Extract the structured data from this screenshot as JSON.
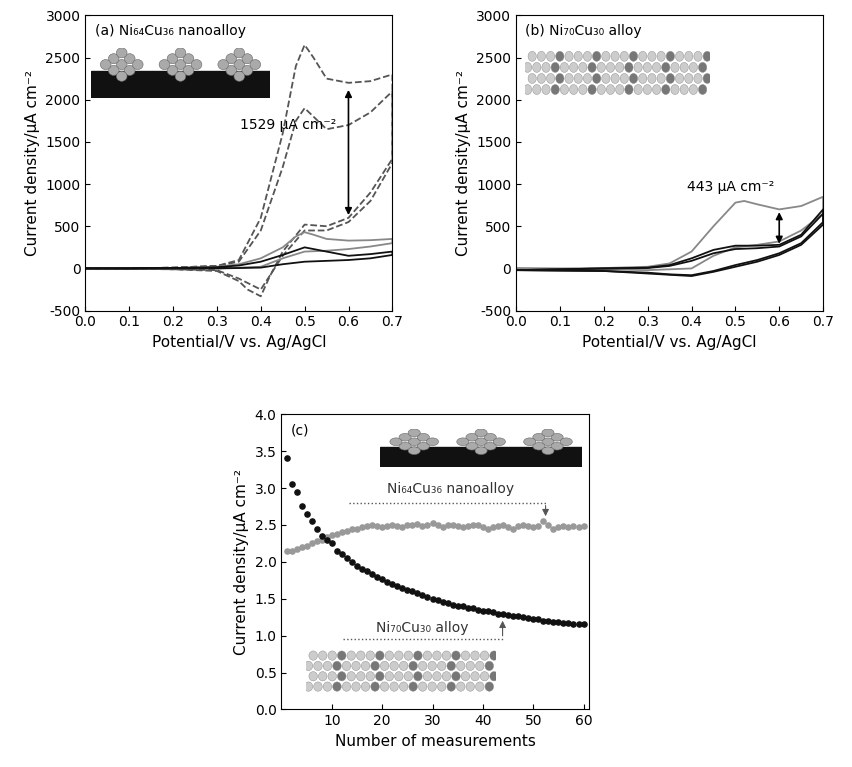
{
  "chart_data": [
    {
      "type": "line",
      "title": "(a) Ni₆₄Cu₃₆ nanoalloy",
      "x_label": "Potential/V vs. Ag/AgCl",
      "y_label": "Current density/μA cm⁻²",
      "xlim": [
        0.0,
        0.7
      ],
      "xticks": [
        0.0,
        0.1,
        0.2,
        0.3,
        0.4,
        0.5,
        0.6,
        0.7
      ],
      "ylim": [
        -500,
        3000
      ],
      "yticks": [
        -500,
        0,
        500,
        1000,
        1500,
        2000,
        2500,
        3000
      ],
      "annotations": [
        "1529 μA cm⁻²"
      ],
      "series": [
        {
          "color": "#555555",
          "line_style": "dashed",
          "x": [
            0.0,
            0.1,
            0.2,
            0.3,
            0.35,
            0.4,
            0.45,
            0.48,
            0.5,
            0.52,
            0.55,
            0.6,
            0.65,
            0.7,
            0.7,
            0.65,
            0.6,
            0.55,
            0.5,
            0.45,
            0.42,
            0.4,
            0.37,
            0.35,
            0.3,
            0.2,
            0.1,
            0.0
          ],
          "values": [
            0,
            0,
            10,
            30,
            100,
            600,
            1600,
            2400,
            2650,
            2500,
            2250,
            2200,
            2220,
            2300,
            1300,
            900,
            600,
            500,
            520,
            200,
            -100,
            -330,
            -250,
            -150,
            -30,
            -10,
            0,
            0
          ]
        },
        {
          "color": "#555555",
          "line_style": "dashed",
          "x": [
            0.0,
            0.1,
            0.2,
            0.3,
            0.35,
            0.4,
            0.45,
            0.48,
            0.5,
            0.52,
            0.55,
            0.6,
            0.65,
            0.7,
            0.7,
            0.65,
            0.6,
            0.55,
            0.5,
            0.45,
            0.4,
            0.35,
            0.3,
            0.2,
            0.0
          ],
          "values": [
            0,
            0,
            10,
            30,
            80,
            450,
            1200,
            1750,
            1900,
            1800,
            1650,
            1700,
            1850,
            2100,
            1250,
            800,
            550,
            450,
            450,
            150,
            -250,
            -120,
            -20,
            -10,
            0
          ]
        },
        {
          "color": "#888888",
          "line_style": "solid",
          "x": [
            0.0,
            0.1,
            0.2,
            0.3,
            0.35,
            0.4,
            0.45,
            0.48,
            0.5,
            0.52,
            0.55,
            0.6,
            0.65,
            0.7,
            0.7,
            0.65,
            0.6,
            0.55,
            0.5,
            0.45,
            0.4,
            0.3,
            0.2,
            0.0
          ],
          "values": [
            0,
            0,
            5,
            20,
            50,
            120,
            250,
            380,
            430,
            400,
            350,
            330,
            335,
            350,
            300,
            260,
            230,
            210,
            200,
            120,
            20,
            0,
            0,
            0
          ]
        },
        {
          "color": "#111111",
          "line_style": "solid",
          "x": [
            0.0,
            0.1,
            0.2,
            0.3,
            0.35,
            0.4,
            0.45,
            0.5,
            0.55,
            0.6,
            0.65,
            0.7,
            0.7,
            0.65,
            0.6,
            0.55,
            0.5,
            0.45,
            0.4,
            0.3,
            0.2,
            0.0
          ],
          "values": [
            0,
            0,
            5,
            15,
            35,
            80,
            160,
            250,
            200,
            150,
            170,
            200,
            160,
            120,
            100,
            90,
            80,
            50,
            10,
            0,
            0,
            0
          ]
        }
      ]
    },
    {
      "type": "line",
      "title": "(b) Ni₇₀Cu₃₀ alloy",
      "x_label": "Potential/V vs. Ag/AgCl",
      "y_label": "Current density/μA cm⁻²",
      "xlim": [
        0.0,
        0.7
      ],
      "xticks": [
        0.0,
        0.1,
        0.2,
        0.3,
        0.4,
        0.5,
        0.6,
        0.7
      ],
      "ylim": [
        -500,
        3000
      ],
      "yticks": [
        -500,
        0,
        500,
        1000,
        1500,
        2000,
        2500,
        3000
      ],
      "annotations": [
        "443 μA cm⁻²"
      ],
      "series": [
        {
          "color": "#888888",
          "line_style": "solid",
          "x": [
            0.0,
            0.1,
            0.2,
            0.3,
            0.35,
            0.4,
            0.45,
            0.5,
            0.52,
            0.55,
            0.6,
            0.65,
            0.7,
            0.7,
            0.65,
            0.6,
            0.55,
            0.5,
            0.45,
            0.4,
            0.3,
            0.2,
            0.0
          ],
          "values": [
            0,
            0,
            5,
            20,
            60,
            200,
            500,
            780,
            800,
            760,
            700,
            740,
            850,
            650,
            450,
            320,
            280,
            250,
            150,
            0,
            -20,
            -10,
            0
          ]
        },
        {
          "color": "#111111",
          "line_style": "solid",
          "x": [
            0.0,
            0.1,
            0.2,
            0.3,
            0.35,
            0.4,
            0.45,
            0.5,
            0.55,
            0.6,
            0.65,
            0.7,
            0.7,
            0.65,
            0.6,
            0.55,
            0.5,
            0.45,
            0.4,
            0.35,
            0.3,
            0.2,
            0.0
          ],
          "values": [
            -20,
            -10,
            0,
            10,
            40,
            120,
            220,
            270,
            270,
            280,
            400,
            700,
            550,
            300,
            180,
            100,
            40,
            -30,
            -80,
            -70,
            -50,
            -30,
            -20
          ]
        },
        {
          "color": "#111111",
          "line_style": "solid",
          "x": [
            0.0,
            0.1,
            0.2,
            0.3,
            0.35,
            0.4,
            0.45,
            0.5,
            0.55,
            0.6,
            0.65,
            0.7,
            0.7,
            0.65,
            0.6,
            0.55,
            0.5,
            0.45,
            0.4,
            0.3,
            0.2,
            0.0
          ],
          "values": [
            -20,
            -10,
            0,
            5,
            30,
            90,
            180,
            230,
            240,
            260,
            380,
            650,
            520,
            280,
            160,
            80,
            20,
            -40,
            -90,
            -60,
            -30,
            -20
          ]
        }
      ]
    },
    {
      "type": "scatter",
      "title": "(c)",
      "x_label": "Number of measurements",
      "y_label": "Current density/μA cm⁻²",
      "xlim": [
        0,
        61
      ],
      "xticks": [
        10,
        20,
        30,
        40,
        50,
        60
      ],
      "ylim": [
        0.0,
        4.0
      ],
      "yticks": [
        0.0,
        0.5,
        1.0,
        1.5,
        2.0,
        2.5,
        3.0,
        3.5,
        4.0
      ],
      "annotations": [
        "Ni₆₄Cu₃₆ nanoalloy",
        "Ni₇₀Cu₃₀ alloy"
      ],
      "x": [
        1,
        2,
        3,
        4,
        5,
        6,
        7,
        8,
        9,
        10,
        11,
        12,
        13,
        14,
        15,
        16,
        17,
        18,
        19,
        20,
        21,
        22,
        23,
        24,
        25,
        26,
        27,
        28,
        29,
        30,
        31,
        32,
        33,
        34,
        35,
        36,
        37,
        38,
        39,
        40,
        41,
        42,
        43,
        44,
        45,
        46,
        47,
        48,
        49,
        50,
        51,
        52,
        53,
        54,
        55,
        56,
        57,
        58,
        59,
        60
      ],
      "series": [
        {
          "color": "#999999",
          "marker": "circle",
          "values": [
            2.15,
            2.15,
            2.17,
            2.2,
            2.22,
            2.25,
            2.28,
            2.3,
            2.33,
            2.36,
            2.38,
            2.4,
            2.42,
            2.44,
            2.45,
            2.47,
            2.48,
            2.5,
            2.48,
            2.47,
            2.49,
            2.5,
            2.48,
            2.47,
            2.5,
            2.5,
            2.51,
            2.49,
            2.5,
            2.52,
            2.5,
            2.47,
            2.5,
            2.5,
            2.48,
            2.47,
            2.49,
            2.5,
            2.5,
            2.47,
            2.45,
            2.47,
            2.48,
            2.5,
            2.47,
            2.45,
            2.48,
            2.5,
            2.49,
            2.47,
            2.48,
            2.55,
            2.5,
            2.45,
            2.47,
            2.48,
            2.47,
            2.48,
            2.47,
            2.48
          ]
        },
        {
          "color": "#111111",
          "marker": "circle",
          "values": [
            3.4,
            3.05,
            2.95,
            2.75,
            2.65,
            2.55,
            2.45,
            2.35,
            2.3,
            2.25,
            2.15,
            2.1,
            2.05,
            2.0,
            1.95,
            1.9,
            1.87,
            1.83,
            1.8,
            1.77,
            1.73,
            1.7,
            1.67,
            1.65,
            1.62,
            1.6,
            1.58,
            1.55,
            1.52,
            1.5,
            1.48,
            1.46,
            1.44,
            1.42,
            1.4,
            1.4,
            1.38,
            1.37,
            1.35,
            1.34,
            1.33,
            1.32,
            1.3,
            1.3,
            1.28,
            1.27,
            1.26,
            1.25,
            1.24,
            1.22,
            1.22,
            1.2,
            1.2,
            1.19,
            1.18,
            1.17,
            1.17,
            1.16,
            1.16,
            1.16
          ]
        }
      ]
    }
  ]
}
